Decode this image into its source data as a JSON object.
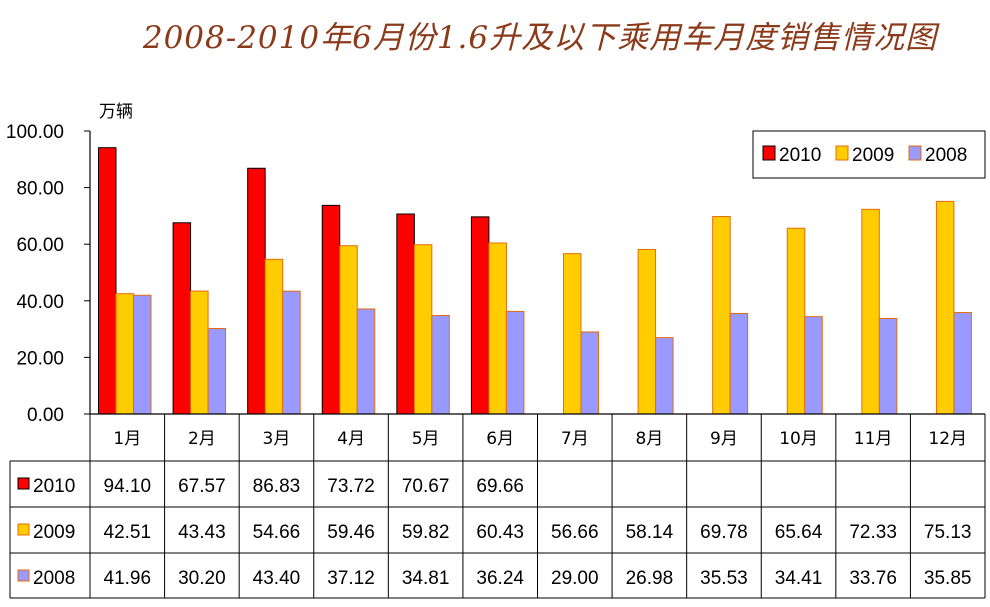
{
  "title": "2008-2010年6月份1.6升及以下乘用车月度销售情况图",
  "chart_data": {
    "type": "bar",
    "y_unit": "万辆",
    "ylim": [
      0,
      100
    ],
    "y_ticks": [
      "0.00",
      "20.00",
      "40.00",
      "60.00",
      "80.00",
      "100.00"
    ],
    "categories": [
      "1月",
      "2月",
      "3月",
      "4月",
      "5月",
      "6月",
      "7月",
      "8月",
      "9月",
      "10月",
      "11月",
      "12月"
    ],
    "series": [
      {
        "name": "2010",
        "color": "#FF0000",
        "values": [
          94.1,
          67.57,
          86.83,
          73.72,
          70.67,
          69.66,
          null,
          null,
          null,
          null,
          null,
          null
        ],
        "labels": [
          "94.10",
          "67.57",
          "86.83",
          "73.72",
          "70.67",
          "69.66",
          "",
          "",
          "",
          "",
          "",
          ""
        ]
      },
      {
        "name": "2009",
        "color": "#FFCC00",
        "values": [
          42.51,
          43.43,
          54.66,
          59.46,
          59.82,
          60.43,
          56.66,
          58.14,
          69.78,
          65.64,
          72.33,
          75.13
        ],
        "labels": [
          "42.51",
          "43.43",
          "54.66",
          "59.46",
          "59.82",
          "60.43",
          "56.66",
          "58.14",
          "69.78",
          "65.64",
          "72.33",
          "75.13"
        ]
      },
      {
        "name": "2008",
        "color": "#9999FF",
        "values": [
          41.96,
          30.2,
          43.4,
          37.12,
          34.81,
          36.24,
          29.0,
          26.98,
          35.53,
          34.41,
          33.76,
          35.85
        ],
        "labels": [
          "41.96",
          "30.20",
          "43.40",
          "37.12",
          "34.81",
          "36.24",
          "29.00",
          "26.98",
          "35.53",
          "34.41",
          "33.76",
          "35.85"
        ]
      }
    ],
    "legend_order": [
      "2010",
      "2009",
      "2008"
    ],
    "legend_position": "top-right",
    "grid": false
  }
}
